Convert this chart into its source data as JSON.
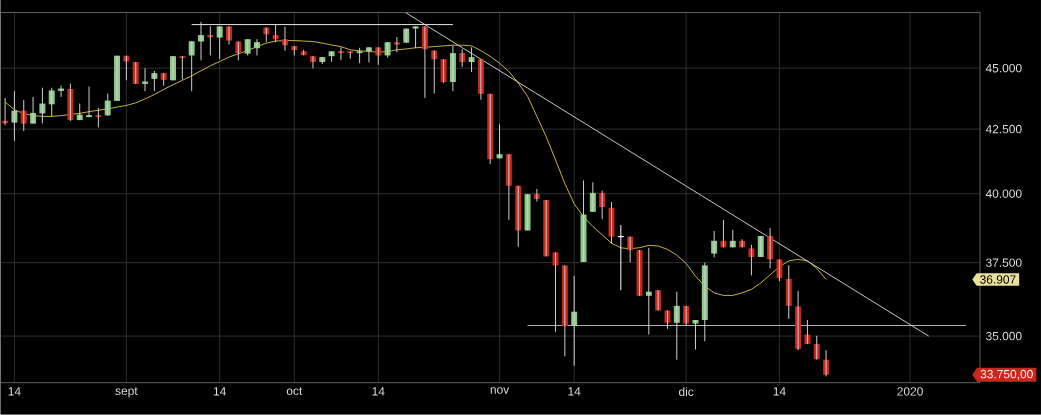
{
  "chart_data": {
    "type": "candlestick",
    "categories": [
      null,
      "14",
      null,
      null,
      null,
      null,
      null,
      null,
      null,
      null,
      null,
      null,
      null,
      "sept",
      null,
      null,
      null,
      null,
      null,
      null,
      null,
      null,
      null,
      "14",
      null,
      null,
      null,
      null,
      null,
      null,
      null,
      "oct",
      null,
      null,
      null,
      null,
      null,
      null,
      null,
      null,
      "14",
      null,
      null,
      null,
      null,
      null,
      null,
      null,
      null,
      null,
      null,
      null,
      null,
      "nov",
      null,
      null,
      null,
      null,
      null,
      null,
      null,
      "14",
      null,
      null,
      null,
      null,
      null,
      null,
      null,
      null,
      null,
      null,
      null,
      "dic",
      null,
      null,
      null,
      null,
      null,
      null,
      null,
      null,
      null,
      "14",
      null,
      null,
      null,
      null,
      null,
      null,
      null,
      null,
      null,
      null,
      null,
      null,
      null,
      "2020",
      null,
      null,
      null,
      null,
      null,
      null,
      null
    ],
    "ohlc": [
      [
        42830,
        43760,
        42660,
        42730
      ],
      [
        42760,
        44040,
        42040,
        43240
      ],
      [
        43240,
        43670,
        42420,
        42720
      ],
      [
        42720,
        43800,
        42720,
        43150
      ],
      [
        43130,
        44180,
        42730,
        43530
      ],
      [
        43500,
        44180,
        43010,
        44070
      ],
      [
        44050,
        44270,
        43800,
        44150
      ],
      [
        44130,
        44350,
        42830,
        42860
      ],
      [
        42860,
        43530,
        42860,
        43080
      ],
      [
        42980,
        44230,
        42980,
        43060
      ],
      [
        43060,
        43350,
        42570,
        42980
      ],
      [
        43050,
        43940,
        43040,
        43650
      ],
      [
        43640,
        45530,
        43640,
        45530
      ],
      [
        45530,
        45530,
        44490,
        45280
      ],
      [
        45260,
        45260,
        44340,
        44340
      ],
      [
        44340,
        45000,
        44040,
        44440
      ],
      [
        44550,
        44880,
        44040,
        44790
      ],
      [
        44790,
        44790,
        44270,
        44510
      ],
      [
        44490,
        45510,
        44490,
        45510
      ],
      [
        45510,
        45510,
        44520,
        45430
      ],
      [
        45540,
        46150,
        44040,
        46150
      ],
      [
        46140,
        46990,
        45330,
        46420
      ],
      [
        46420,
        46800,
        45540,
        46320
      ],
      [
        46310,
        46800,
        45380,
        46800
      ],
      [
        46800,
        46800,
        46010,
        46180
      ],
      [
        46140,
        46140,
        45330,
        45640
      ],
      [
        45620,
        46240,
        45540,
        46240
      ],
      [
        45850,
        46240,
        45540,
        46110
      ],
      [
        46750,
        46750,
        46120,
        46450
      ],
      [
        46420,
        46890,
        46110,
        46240
      ],
      [
        46240,
        46780,
        45740,
        45980
      ],
      [
        45940,
        45940,
        45540,
        45770
      ],
      [
        45720,
        45780,
        45550,
        45550
      ],
      [
        45510,
        45510,
        44990,
        45260
      ],
      [
        45260,
        45470,
        45170,
        45470
      ],
      [
        45510,
        45720,
        45270,
        45720
      ],
      [
        45720,
        45890,
        45340,
        45640
      ],
      [
        45720,
        45720,
        45400,
        45640
      ],
      [
        45640,
        45870,
        45210,
        45720
      ],
      [
        45710,
        45890,
        45240,
        45890
      ],
      [
        45890,
        45890,
        45140,
        45540
      ],
      [
        45540,
        46110,
        45450,
        46110
      ],
      [
        46110,
        46330,
        45680,
        46010
      ],
      [
        46090,
        46700,
        46070,
        46700
      ],
      [
        46700,
        46800,
        45850,
        46800
      ],
      [
        46800,
        46800,
        43760,
        45810
      ],
      [
        45750,
        45750,
        43940,
        45380
      ],
      [
        45380,
        45380,
        44380,
        44420
      ],
      [
        44420,
        45950,
        44040,
        45640
      ],
      [
        45640,
        45810,
        45040,
        45260
      ],
      [
        45260,
        45890,
        44840,
        45470
      ],
      [
        45380,
        45380,
        43690,
        43930
      ],
      [
        43930,
        43930,
        41130,
        41320
      ],
      [
        41350,
        42690,
        41350,
        41510
      ],
      [
        41510,
        41510,
        39040,
        40300
      ],
      [
        40300,
        40300,
        38060,
        38650
      ],
      [
        38650,
        39990,
        38650,
        39990
      ],
      [
        39990,
        40180,
        39710,
        39810
      ],
      [
        39770,
        39770,
        37720,
        37720
      ],
      [
        37860,
        37860,
        35140,
        37400
      ],
      [
        37400,
        37400,
        34340,
        35330
      ],
      [
        35330,
        37040,
        34040,
        35810
      ],
      [
        37520,
        40500,
        37520,
        39230
      ],
      [
        39330,
        40430,
        39330,
        40030
      ],
      [
        40030,
        40120,
        39060,
        39510
      ],
      [
        39480,
        39690,
        38190,
        38430
      ],
      [
        38430,
        38850,
        36540,
        38430
      ],
      [
        38430,
        38430,
        37510,
        37940
      ],
      [
        37940,
        37940,
        36350,
        36350
      ],
      [
        36350,
        38020,
        35050,
        36490
      ],
      [
        36540,
        36540,
        35850,
        35850
      ],
      [
        35850,
        35850,
        35240,
        35440
      ],
      [
        35440,
        36490,
        34230,
        36010
      ],
      [
        36010,
        36010,
        35350,
        35410
      ],
      [
        35410,
        35530,
        34560,
        35530
      ],
      [
        35530,
        37500,
        34830,
        37400
      ],
      [
        37820,
        38630,
        37680,
        38270
      ],
      [
        38270,
        39030,
        38040,
        38040
      ],
      [
        38040,
        38670,
        38040,
        38270
      ],
      [
        38270,
        38330,
        38040,
        38040
      ],
      [
        38000,
        38130,
        37050,
        37700
      ],
      [
        37700,
        38450,
        37700,
        38450
      ],
      [
        38450,
        38730,
        37300,
        37610
      ],
      [
        37610,
        37610,
        36850,
        36960
      ],
      [
        36930,
        37410,
        35570,
        36010
      ],
      [
        35990,
        36510,
        34540,
        34580
      ],
      [
        35050,
        35530,
        34740,
        34740
      ],
      [
        34740,
        35010,
        34230,
        34250
      ],
      [
        34230,
        34540,
        33700,
        33750
      ],
      null,
      null,
      null,
      null,
      null,
      null,
      null,
      null,
      null,
      null,
      null,
      null,
      null,
      null,
      null,
      null
    ],
    "colors": [
      "#c9291c",
      "#8fca8b",
      "#c9291c",
      "#8fca8b",
      "#8fca8b",
      "#8fca8b",
      "#8fca8b",
      "#c9291c",
      "#8fca8b",
      "#8fca8b",
      "#c9291c",
      "#8fca8b",
      "#8fca8b",
      "#c9291c",
      "#c9291c",
      "#8fca8b",
      "#8fca8b",
      "#c9291c",
      "#8fca8b",
      "#c9291c",
      "#8fca8b",
      "#8fca8b",
      "#c9291c",
      "#8fca8b",
      "#c9291c",
      "#c9291c",
      "#8fca8b",
      "#8fca8b",
      "#c9291c",
      "#c9291c",
      "#c9291c",
      "#c9291c",
      "#c9291c",
      "#c9291c",
      "#8fca8b",
      "#8fca8b",
      "#c9291c",
      "#c9291c",
      "#8fca8b",
      "#8fca8b",
      "#c9291c",
      "#8fca8b",
      "#c9291c",
      "#8fca8b",
      "#8fca8b",
      "#c9291c",
      "#c9291c",
      "#c9291c",
      "#8fca8b",
      "#c9291c",
      "#8fca8b",
      "#c9291c",
      "#c9291c",
      "#8fca8b",
      "#c9291c",
      "#c9291c",
      "#8fca8b",
      "#c9291c",
      "#c9291c",
      "#c9291c",
      "#c9291c",
      "#8fca8b",
      "#8fca8b",
      "#8fca8b",
      "#c9291c",
      "#c9291c",
      "#ffffff",
      "#c9291c",
      "#c9291c",
      "#8fca8b",
      "#c9291c",
      "#c9291c",
      "#8fca8b",
      "#c9291c",
      "#8fca8b",
      "#8fca8b",
      "#8fca8b",
      "#c9291c",
      "#8fca8b",
      "#c9291c",
      "#c9291c",
      "#8fca8b",
      "#c9291c",
      "#c9291c",
      "#c9291c",
      "#c9291c",
      "#c9291c",
      "#c9291c",
      "#c9291c",
      null,
      null,
      null,
      null,
      null,
      null,
      null,
      null,
      null,
      null,
      null,
      null,
      null,
      null,
      null,
      null
    ],
    "series": [
      {
        "type": "line",
        "color": "#d8c64a",
        "values": [
          43590,
          43280,
          43120,
          43040,
          43010,
          43010,
          43040,
          43090,
          43130,
          43200,
          43260,
          43310,
          43390,
          43450,
          43560,
          43720,
          43900,
          44110,
          44310,
          44490,
          44680,
          44890,
          45100,
          45280,
          45470,
          45610,
          45750,
          45920,
          46070,
          46160,
          46180,
          46180,
          46160,
          46140,
          46070,
          45990,
          45920,
          45780,
          45740,
          45710,
          45680,
          45710,
          45780,
          45820,
          45870,
          45890,
          45920,
          45950,
          45980,
          45980,
          45950,
          45750,
          45500,
          45210,
          44860,
          44380,
          43830,
          43010,
          42200,
          41290,
          40380,
          39630,
          39150,
          38790,
          38490,
          38190,
          38020,
          37990,
          38030,
          38110,
          38090,
          37970,
          37760,
          37470,
          37020,
          36680,
          36450,
          36360,
          36360,
          36450,
          36570,
          36790,
          37070,
          37350,
          37560,
          37610,
          37560,
          37300,
          36907,
          null,
          null,
          null,
          null,
          null,
          null,
          null,
          null,
          null,
          null,
          null,
          null,
          null,
          null,
          null,
          null
        ]
      },
      {
        "type": "line",
        "color": "#ffffff",
        "values": [
          null,
          null,
          null,
          null,
          null,
          null,
          null,
          null,
          null,
          null,
          null,
          null,
          null,
          null,
          null,
          null,
          null,
          null,
          null,
          null,
          46880,
          null,
          null,
          null,
          null,
          null,
          null,
          null,
          null,
          null,
          null,
          null,
          null,
          null,
          null,
          null,
          null,
          null,
          null,
          null,
          null,
          null,
          null,
          null,
          null,
          null,
          null,
          null,
          46880,
          null,
          null,
          null,
          null,
          null,
          null,
          null,
          null,
          null,
          null,
          null,
          null,
          null,
          null,
          null,
          null,
          null,
          null,
          null,
          null,
          null,
          null,
          null,
          null,
          null,
          null,
          null,
          null,
          null,
          null,
          null,
          null,
          null,
          null,
          null,
          null,
          null,
          null,
          null,
          null,
          null,
          null,
          null,
          null,
          null,
          null,
          null,
          null,
          null,
          null,
          null,
          null,
          null,
          null,
          null,
          null
        ]
      },
      {
        "type": "line",
        "color": "#dcdcdc",
        "values": [
          null,
          null,
          null,
          null,
          null,
          null,
          null,
          null,
          null,
          null,
          null,
          null,
          null,
          null,
          null,
          null,
          null,
          null,
          null,
          null,
          null,
          null,
          null,
          null,
          null,
          null,
          null,
          null,
          null,
          null,
          null,
          null,
          null,
          null,
          null,
          null,
          null,
          null,
          null,
          null,
          null,
          null,
          null,
          47390,
          null,
          null,
          null,
          null,
          null,
          null,
          null,
          null,
          null,
          null,
          null,
          null,
          null,
          null,
          null,
          null,
          null,
          null,
          null,
          null,
          null,
          null,
          null,
          null,
          null,
          null,
          null,
          null,
          null,
          null,
          null,
          null,
          null,
          null,
          null,
          null,
          null,
          null,
          null,
          null,
          null,
          null,
          null,
          null,
          null,
          null,
          null,
          null,
          null,
          null,
          null,
          null,
          null,
          null,
          null,
          35000,
          null,
          null,
          null,
          null,
          null
        ]
      },
      {
        "type": "line",
        "color": "#c8c8c8",
        "values": [
          null,
          null,
          null,
          null,
          null,
          null,
          null,
          null,
          null,
          null,
          null,
          null,
          null,
          null,
          null,
          null,
          null,
          null,
          null,
          null,
          null,
          null,
          null,
          null,
          null,
          null,
          null,
          null,
          null,
          null,
          null,
          null,
          null,
          null,
          null,
          null,
          null,
          null,
          null,
          null,
          null,
          null,
          null,
          null,
          null,
          null,
          null,
          null,
          null,
          null,
          null,
          null,
          null,
          null,
          null,
          null,
          35350,
          null,
          null,
          null,
          null,
          null,
          null,
          null,
          null,
          null,
          null,
          null,
          null,
          null,
          null,
          null,
          null,
          null,
          null,
          null,
          null,
          null,
          null,
          null,
          null,
          null,
          null,
          null,
          null,
          null,
          null,
          null,
          null,
          null,
          null,
          null,
          null,
          null,
          null,
          null,
          null,
          null,
          null,
          null,
          null,
          null,
          null,
          35350,
          null
        ]
      }
    ],
    "log": "y",
    "ylim": [
      33500,
      47410
    ],
    "yticks": [
      {
        "value": 35000,
        "label": "35.000"
      },
      {
        "value": 37500,
        "label": "37.500"
      },
      {
        "value": 40000,
        "label": "40.000"
      },
      {
        "value": 42500,
        "label": "42.500"
      },
      {
        "value": 45000,
        "label": "45.000"
      }
    ],
    "grid": true,
    "annotations": [
      "36.907",
      "33.750,00"
    ]
  }
}
